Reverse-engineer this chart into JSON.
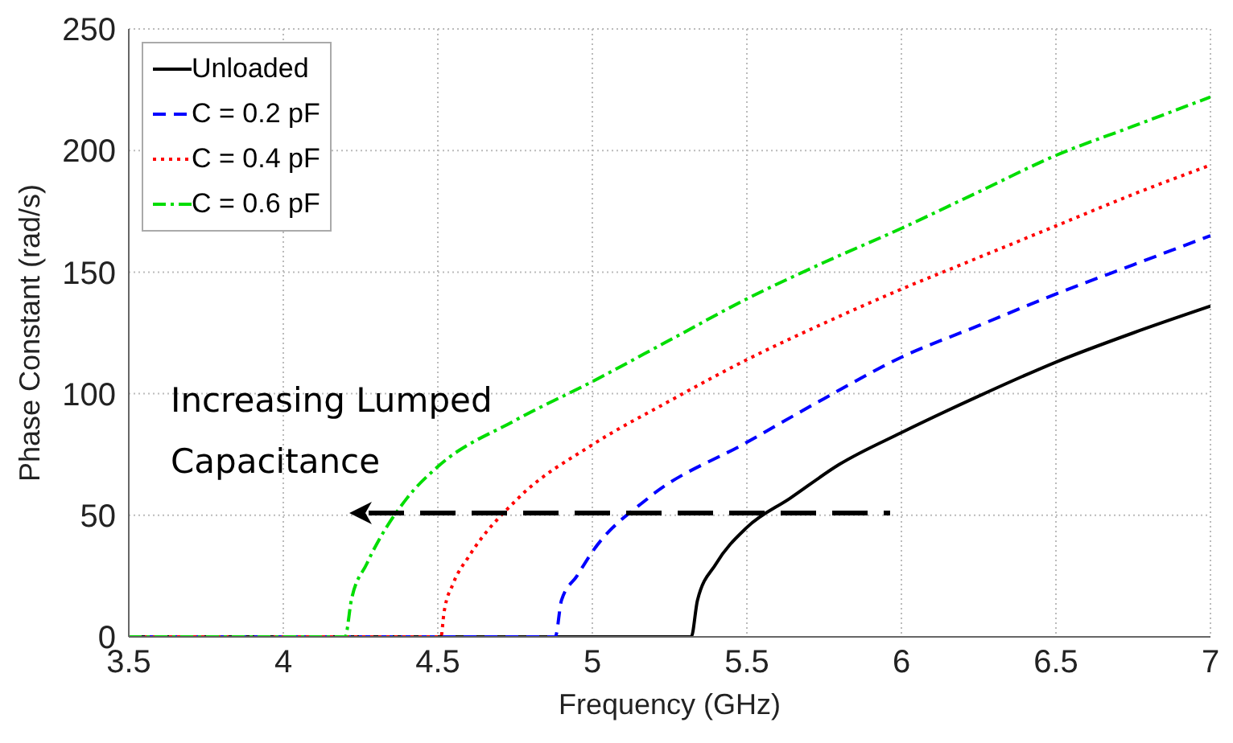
{
  "chart_data": {
    "type": "line",
    "xlabel": "Frequency (GHz)",
    "ylabel": "Phase Constant (rad/s)",
    "xlim": [
      3.5,
      7
    ],
    "xticks": [
      3.5,
      4,
      4.5,
      5,
      5.5,
      6,
      6.5,
      7
    ],
    "ylim": [
      0,
      250
    ],
    "yticks": [
      0,
      50,
      100,
      150,
      200,
      250
    ],
    "grid": true,
    "legend": "top left",
    "annotations": [
      "Increasing Lumped Capacitance"
    ],
    "series": [
      {
        "name": "Unloaded",
        "color": "#000000",
        "line_style": "solid",
        "x": [
          3.5,
          5.32,
          5.34,
          5.4,
          5.5,
          5.64,
          5.8,
          6.0,
          6.25,
          6.5,
          6.75,
          7
        ],
        "values": [
          0,
          0,
          15,
          30,
          45,
          57,
          71,
          84,
          99,
          113,
          125,
          136
        ]
      },
      {
        "name": "C = 0.2 pF",
        "color": "#0000ff",
        "line_style": "dashed",
        "x": [
          3.5,
          4.88,
          4.9,
          4.95,
          5.0,
          5.18,
          5.5,
          5.75,
          6.0,
          6.25,
          6.5,
          6.75,
          7
        ],
        "values": [
          0,
          0,
          15,
          25,
          35,
          57,
          80,
          98,
          115,
          128,
          141,
          153,
          165
        ]
      },
      {
        "name": "C = 0.4 pF",
        "color": "#ff0000",
        "line_style": "dotted",
        "x": [
          3.5,
          4.51,
          4.52,
          4.55,
          4.6,
          4.76,
          5.0,
          5.25,
          5.5,
          5.75,
          6.0,
          6.25,
          6.5,
          6.75,
          7
        ],
        "values": [
          0,
          0,
          10,
          22,
          33,
          57,
          79,
          97,
          114,
          129,
          143,
          156,
          169,
          182,
          194
        ]
      },
      {
        "name": "C = 0.6 pF",
        "color": "#00dd00",
        "line_style": "dashdot",
        "x": [
          3.5,
          4.2,
          4.22,
          4.27,
          4.4,
          4.5,
          4.75,
          5.0,
          5.25,
          5.5,
          5.75,
          6.0,
          6.25,
          6.5,
          6.75,
          7
        ],
        "values": [
          0,
          0,
          15,
          30,
          57,
          70,
          89,
          105,
          122,
          139,
          154,
          168,
          183,
          198,
          210,
          222
        ]
      }
    ]
  }
}
